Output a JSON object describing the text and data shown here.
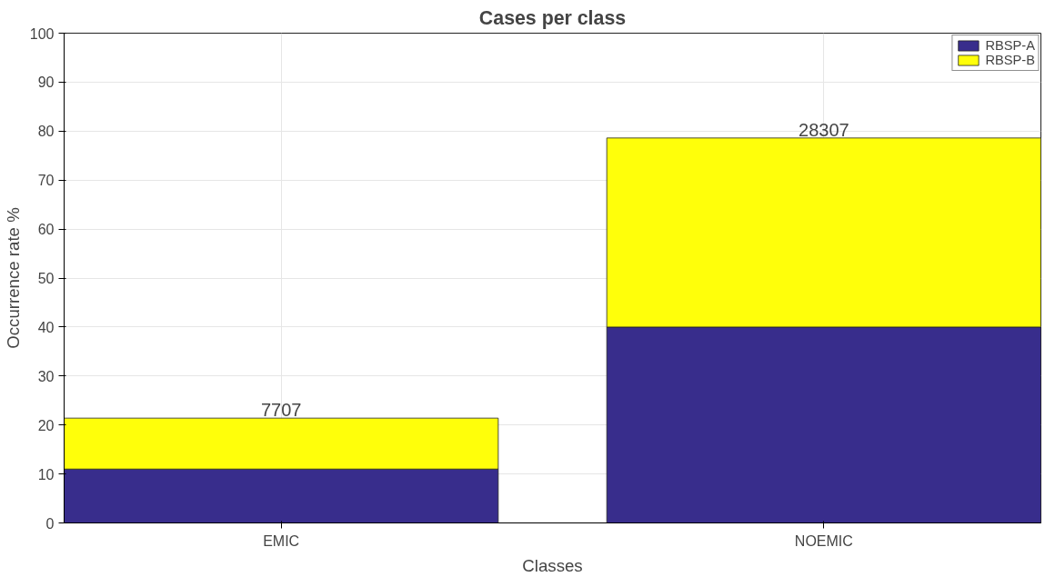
{
  "chart_data": {
    "type": "bar",
    "title": "Cases per class",
    "xlabel": "Classes",
    "ylabel": "Occurrence rate %",
    "categories": [
      "EMIC",
      "NOEMIC"
    ],
    "series": [
      {
        "name": "RBSP-A",
        "color": "#382d8c",
        "values": [
          11.0,
          40.0
        ]
      },
      {
        "name": "RBSP-B",
        "color": "#ffff0a",
        "values": [
          10.4,
          38.6
        ]
      }
    ],
    "stacked": true,
    "annotations": [
      {
        "text": "7707",
        "x": "EMIC",
        "y": 21.4
      },
      {
        "text": "28307",
        "x": "NOEMIC",
        "y": 78.6
      }
    ],
    "ylim": [
      0,
      100
    ],
    "yticks": [
      0,
      10,
      20,
      30,
      40,
      50,
      60,
      70,
      80,
      90,
      100
    ],
    "grid": true,
    "legend": "top right"
  }
}
